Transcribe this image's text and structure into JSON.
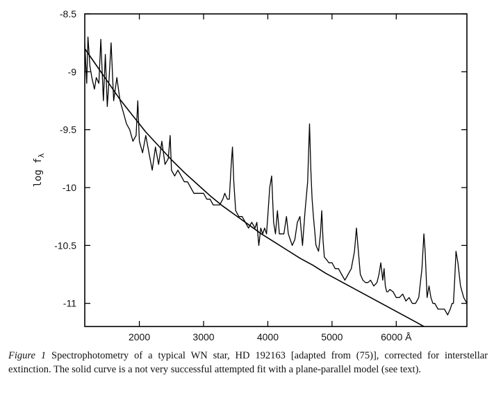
{
  "chart_data": {
    "type": "line",
    "title": "",
    "xlabel": "",
    "ylabel": "log  f",
    "ylabel_subscript": "λ",
    "xlim": [
      1150,
      7100
    ],
    "ylim": [
      -11.2,
      -8.5
    ],
    "xticks": [
      2000,
      3000,
      4000,
      5000,
      6000
    ],
    "xtick_labels": [
      "2000",
      "3000",
      "4000",
      "5000",
      "6000 Å"
    ],
    "yticks": [
      -8.5,
      -9,
      -9.5,
      -10,
      -10.5,
      -11
    ],
    "ytick_labels": [
      "-8.5",
      "-9",
      "-9.5",
      "-10",
      "-10.5",
      "-11"
    ],
    "grid": false,
    "series": [
      {
        "name": "",
        "style": "jagged",
        "x": [
          1150,
          1180,
          1200,
          1230,
          1260,
          1300,
          1330,
          1370,
          1400,
          1440,
          1470,
          1500,
          1530,
          1560,
          1600,
          1650,
          1700,
          1750,
          1800,
          1850,
          1900,
          1950,
          1975,
          2000,
          2050,
          2100,
          2150,
          2200,
          2250,
          2300,
          2350,
          2400,
          2450,
          2480,
          2500,
          2550,
          2600,
          2650,
          2700,
          2750,
          2800,
          2850,
          2900,
          2950,
          3000,
          3050,
          3100,
          3150,
          3200,
          3250,
          3300,
          3330,
          3370,
          3400,
          3430,
          3450,
          3470,
          3500,
          3550,
          3600,
          3650,
          3700,
          3750,
          3800,
          3830,
          3860,
          3890,
          3920,
          3950,
          3980,
          4000,
          4030,
          4060,
          4090,
          4120,
          4150,
          4180,
          4210,
          4250,
          4290,
          4320,
          4350,
          4380,
          4420,
          4460,
          4500,
          4540,
          4580,
          4620,
          4650,
          4670,
          4690,
          4710,
          4750,
          4790,
          4820,
          4840,
          4860,
          4880,
          4910,
          4950,
          5000,
          5050,
          5100,
          5150,
          5200,
          5250,
          5300,
          5350,
          5380,
          5410,
          5440,
          5480,
          5520,
          5560,
          5600,
          5650,
          5700,
          5730,
          5760,
          5790,
          5810,
          5830,
          5850,
          5870,
          5900,
          5950,
          6000,
          6050,
          6100,
          6150,
          6200,
          6250,
          6300,
          6350,
          6400,
          6430,
          6450,
          6480,
          6510,
          6540,
          6570,
          6600,
          6650,
          6700,
          6750,
          6800,
          6840,
          6870,
          6890,
          6910,
          6930,
          6960,
          7000,
          7050,
          7100
        ],
        "y": [
          -8.75,
          -9.1,
          -8.7,
          -8.95,
          -9.05,
          -9.15,
          -9.05,
          -9.1,
          -8.72,
          -9.25,
          -8.85,
          -9.3,
          -9.05,
          -8.75,
          -9.25,
          -9.05,
          -9.25,
          -9.35,
          -9.45,
          -9.5,
          -9.6,
          -9.55,
          -9.25,
          -9.6,
          -9.7,
          -9.55,
          -9.7,
          -9.85,
          -9.65,
          -9.8,
          -9.6,
          -9.8,
          -9.75,
          -9.55,
          -9.85,
          -9.9,
          -9.85,
          -9.9,
          -9.95,
          -9.95,
          -10.0,
          -10.05,
          -10.05,
          -10.05,
          -10.05,
          -10.1,
          -10.1,
          -10.15,
          -10.15,
          -10.15,
          -10.1,
          -10.05,
          -10.1,
          -10.1,
          -9.8,
          -9.65,
          -9.95,
          -10.2,
          -10.25,
          -10.25,
          -10.3,
          -10.35,
          -10.3,
          -10.35,
          -10.3,
          -10.5,
          -10.35,
          -10.4,
          -10.35,
          -10.4,
          -10.25,
          -10.0,
          -9.9,
          -10.3,
          -10.4,
          -10.2,
          -10.4,
          -10.4,
          -10.4,
          -10.25,
          -10.4,
          -10.45,
          -10.5,
          -10.45,
          -10.3,
          -10.25,
          -10.5,
          -10.2,
          -9.95,
          -9.45,
          -9.85,
          -10.1,
          -10.25,
          -10.5,
          -10.55,
          -10.4,
          -10.2,
          -10.45,
          -10.6,
          -10.62,
          -10.65,
          -10.65,
          -10.7,
          -10.7,
          -10.75,
          -10.8,
          -10.75,
          -10.7,
          -10.55,
          -10.35,
          -10.55,
          -10.75,
          -10.8,
          -10.82,
          -10.82,
          -10.8,
          -10.85,
          -10.82,
          -10.75,
          -10.65,
          -10.8,
          -10.7,
          -10.85,
          -10.9,
          -10.9,
          -10.88,
          -10.9,
          -10.95,
          -10.95,
          -10.92,
          -10.98,
          -10.95,
          -11.0,
          -11.0,
          -10.95,
          -10.7,
          -10.4,
          -10.55,
          -10.95,
          -10.85,
          -10.95,
          -11.0,
          -11.0,
          -11.05,
          -11.05,
          -11.05,
          -11.1,
          -11.05,
          -11.0,
          -11.0,
          -10.8,
          -10.55,
          -10.65,
          -10.85,
          -10.95,
          -11.0
        ]
      },
      {
        "name": "",
        "style": "smooth",
        "x": [
          1150,
          1300,
          1500,
          1700,
          1900,
          2100,
          2300,
          2500,
          2700,
          2900,
          3100,
          3300,
          3500,
          3700,
          3900,
          4100,
          4300,
          4500,
          4700,
          4900,
          5100,
          5300,
          5500,
          5700,
          5900,
          6100,
          6300,
          6430
        ],
        "y": [
          -8.8,
          -8.92,
          -9.08,
          -9.24,
          -9.38,
          -9.52,
          -9.64,
          -9.76,
          -9.87,
          -9.97,
          -10.07,
          -10.16,
          -10.24,
          -10.32,
          -10.4,
          -10.47,
          -10.54,
          -10.61,
          -10.67,
          -10.74,
          -10.8,
          -10.86,
          -10.92,
          -10.98,
          -11.04,
          -11.1,
          -11.16,
          -11.2
        ]
      }
    ]
  },
  "caption": {
    "label": "Figure 1",
    "text": "  Spectrophotometry of a typical WN star, HD 192163 [adapted from (75)], corrected for interstellar extinction. The solid curve is a not very successful attempted fit with a plane-parallel model (see text)."
  }
}
